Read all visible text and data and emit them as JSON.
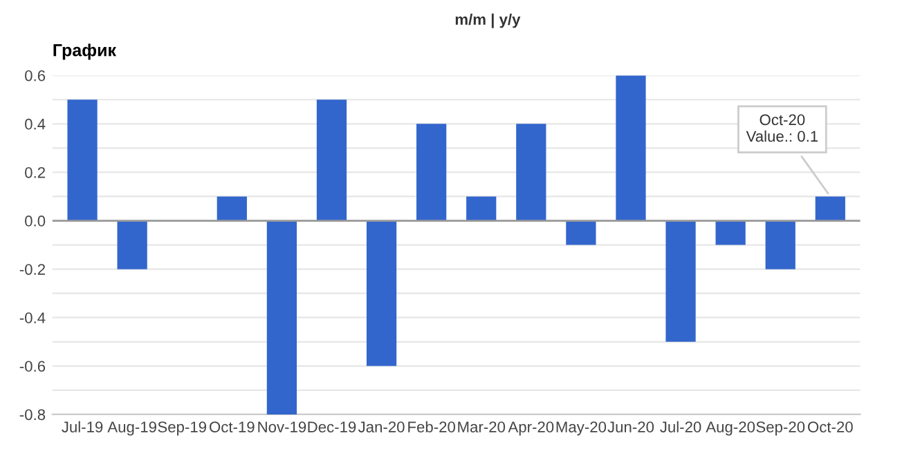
{
  "chart_data": {
    "type": "bar",
    "title": "График",
    "subtitle": "m/m | y/y",
    "categories": [
      "Jul-19",
      "Aug-19",
      "Sep-19",
      "Oct-19",
      "Nov-19",
      "Dec-19",
      "Jan-20",
      "Feb-20",
      "Mar-20",
      "Apr-20",
      "May-20",
      "Jun-20",
      "Jul-20",
      "Aug-20",
      "Sep-20",
      "Oct-20"
    ],
    "values": [
      0.5,
      -0.2,
      0,
      0.1,
      -0.8,
      0.5,
      -0.6,
      0.4,
      0.1,
      0.4,
      -0.1,
      0.6,
      -0.5,
      -0.1,
      -0.2,
      0.1
    ],
    "color": "#3366cc",
    "ylim": [
      -0.8,
      0.6
    ],
    "yticks": [
      {
        "value": -0.8,
        "label": "-0.8"
      },
      {
        "value": -0.7,
        "label": null
      },
      {
        "value": -0.6,
        "label": "-0.6"
      },
      {
        "value": -0.5,
        "label": null
      },
      {
        "value": -0.4,
        "label": "-0.4"
      },
      {
        "value": -0.3,
        "label": null
      },
      {
        "value": -0.2,
        "label": "-0.2"
      },
      {
        "value": -0.1,
        "label": null
      },
      {
        "value": 0,
        "label": "0.0"
      },
      {
        "value": 0.1,
        "label": null
      },
      {
        "value": 0.2,
        "label": "0.2"
      },
      {
        "value": 0.3,
        "label": null
      },
      {
        "value": 0.4,
        "label": "0.4"
      },
      {
        "value": 0.5,
        "label": null
      },
      {
        "value": 0.6,
        "label": "0.6"
      }
    ],
    "grid": "y",
    "legend": false,
    "annotations": [
      {
        "text": "Oct-20\nValue.: 0.1",
        "x": "Oct-20",
        "y": 0.1
      }
    ]
  }
}
